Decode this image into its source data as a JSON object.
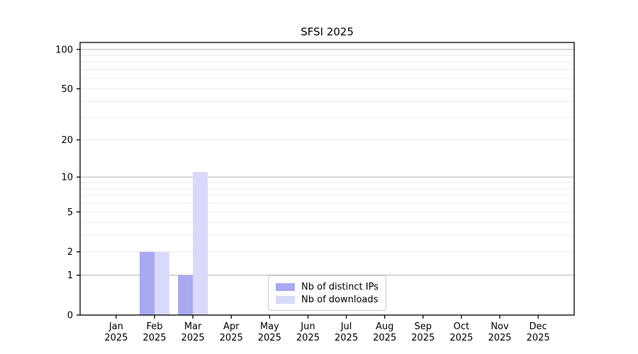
{
  "title": "SFSI 2025",
  "chart_data": {
    "type": "bar",
    "title": "SFSI 2025",
    "categories": [
      "Jan",
      "Feb",
      "Mar",
      "Apr",
      "May",
      "Jun",
      "Jul",
      "Aug",
      "Sep",
      "Oct",
      "Nov",
      "Dec"
    ],
    "category_year": "2025",
    "series": [
      {
        "name": "Nb of distinct IPs",
        "color": "#a9a9f1",
        "values": [
          0,
          2,
          1,
          0,
          0,
          0,
          0,
          0,
          0,
          0,
          0,
          0
        ]
      },
      {
        "name": "Nb of downloads",
        "color": "#d9d9f9",
        "values": [
          0,
          2,
          11,
          0,
          0,
          0,
          0,
          0,
          0,
          0,
          0,
          0
        ]
      }
    ],
    "xlabel": "",
    "ylabel": "",
    "yscale": "log1p",
    "ylim": [
      0,
      113
    ],
    "yticks": [
      0,
      1,
      2,
      5,
      10,
      20,
      50,
      100
    ],
    "grid": true,
    "grid_major_values": [
      1,
      10,
      100
    ],
    "grid_minor_values": [
      2,
      3,
      4,
      5,
      6,
      7,
      8,
      9,
      20,
      30,
      40,
      50,
      60,
      70,
      80,
      90
    ],
    "legend_position": "lower center"
  },
  "colors": {
    "axis": "#000000",
    "grid_major": "#b2b2b2",
    "grid_minor": "#e9e9e9",
    "text": "#000000",
    "legend_border": "#cccccc",
    "background": "#ffffff"
  }
}
